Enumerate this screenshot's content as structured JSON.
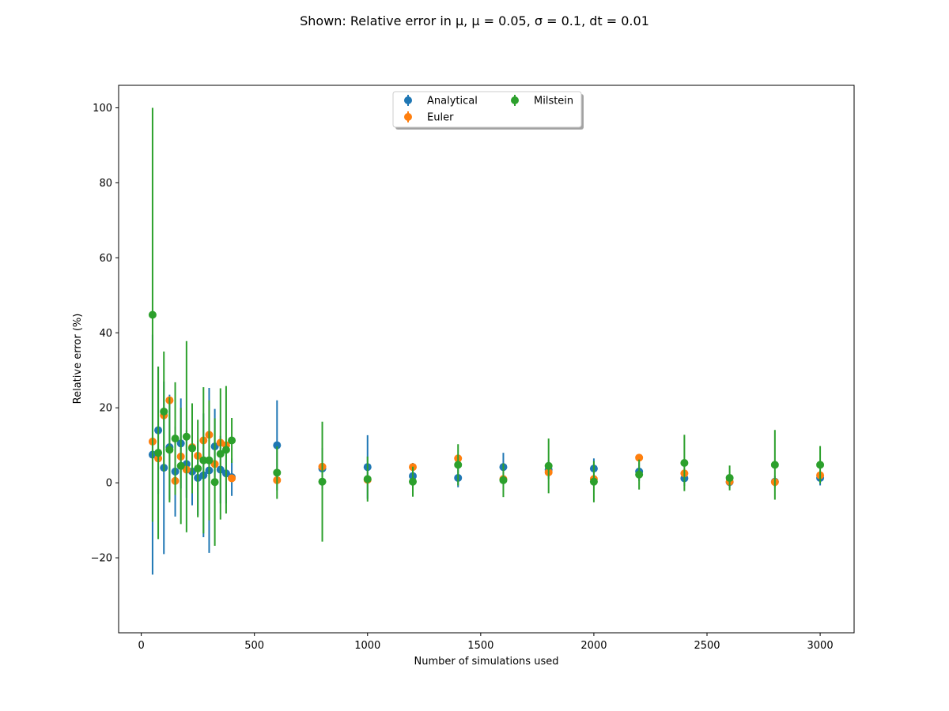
{
  "chart_data": {
    "type": "scatter",
    "title": "Shown: Relative error in μ, μ = 0.05, σ = 0.1, dt = 0.01",
    "xlabel": "Number of simulations used",
    "ylabel": "Relative error (%)",
    "xlim": [
      -100,
      3150
    ],
    "ylim": [
      -40,
      106
    ],
    "xticks": [
      0,
      500,
      1000,
      1500,
      2000,
      2500,
      3000
    ],
    "yticks": [
      -20,
      0,
      20,
      40,
      60,
      80,
      100
    ],
    "xtick_labels": [
      "0",
      "500",
      "1000",
      "1500",
      "2000",
      "2500",
      "3000"
    ],
    "ytick_labels": [
      "−20",
      "0",
      "20",
      "40",
      "60",
      "80",
      "100"
    ],
    "grid": false,
    "legend_position": "top-center",
    "legend_columns": 2,
    "series": [
      {
        "name": "Analytical",
        "color": "#1f77b4",
        "x": [
          50,
          75,
          100,
          125,
          150,
          175,
          200,
          225,
          250,
          275,
          300,
          325,
          350,
          375,
          400,
          600,
          800,
          1000,
          1200,
          1400,
          1600,
          1800,
          2000,
          2200,
          2400,
          2600,
          2800,
          3000
        ],
        "y": [
          7.5,
          14.0,
          4.0,
          9.5,
          3.0,
          10.5,
          5.0,
          3.0,
          1.3,
          2.0,
          3.3,
          9.7,
          3.5,
          2.5,
          1.5,
          10.0,
          3.8,
          4.2,
          1.8,
          1.3,
          4.2,
          3.5,
          3.8,
          3.0,
          1.2,
          0.2,
          0.3,
          1.3
        ],
        "yerr": [
          32.0,
          17.0,
          23.0,
          14.0,
          12.0,
          12.0,
          9.0,
          9.0,
          10.0,
          16.5,
          22.0,
          10.0,
          9.0,
          8.0,
          5.0,
          12.0,
          5.5,
          8.5,
          3.5,
          2.5,
          3.8,
          2.5,
          2.7,
          2.5,
          2.0,
          1.5,
          1.5,
          2.0
        ]
      },
      {
        "name": "Euler",
        "color": "#ff7f0e",
        "x": [
          50,
          75,
          100,
          125,
          150,
          175,
          200,
          225,
          250,
          275,
          300,
          325,
          350,
          375,
          400,
          600,
          800,
          1000,
          1200,
          1400,
          1600,
          1800,
          2000,
          2200,
          2400,
          2600,
          2800,
          3000
        ],
        "y": [
          11.0,
          6.5,
          18.0,
          22.0,
          0.5,
          7.0,
          3.5,
          9.5,
          7.2,
          11.3,
          12.8,
          5.0,
          10.7,
          10.0,
          1.2,
          0.7,
          4.3,
          0.8,
          4.2,
          6.5,
          1.0,
          2.8,
          1.0,
          6.7,
          2.5,
          0.3,
          0.2,
          2.0
        ]
      },
      {
        "name": "Milstein",
        "color": "#2ca02c",
        "x": [
          50,
          75,
          100,
          125,
          150,
          175,
          200,
          225,
          250,
          275,
          300,
          325,
          350,
          375,
          400,
          600,
          800,
          1000,
          1200,
          1400,
          1600,
          1800,
          2000,
          2200,
          2400,
          2600,
          2800,
          3000
        ],
        "y": [
          44.8,
          8.0,
          19.0,
          8.8,
          11.8,
          4.5,
          12.3,
          9.2,
          3.8,
          6.0,
          6.0,
          0.2,
          7.7,
          8.8,
          11.3,
          2.7,
          0.3,
          1.0,
          0.3,
          4.8,
          0.7,
          4.5,
          0.3,
          2.2,
          5.3,
          1.3,
          4.8,
          4.8
        ],
        "yerr": [
          55.2,
          23.0,
          16.0,
          14.0,
          15.0,
          15.5,
          25.5,
          12.0,
          13.0,
          19.5,
          16.0,
          17.0,
          17.5,
          17.0,
          6.0,
          7.0,
          16.0,
          6.0,
          4.0,
          5.5,
          4.5,
          7.3,
          5.5,
          4.0,
          7.5,
          3.3,
          9.3,
          5.0
        ]
      }
    ]
  }
}
